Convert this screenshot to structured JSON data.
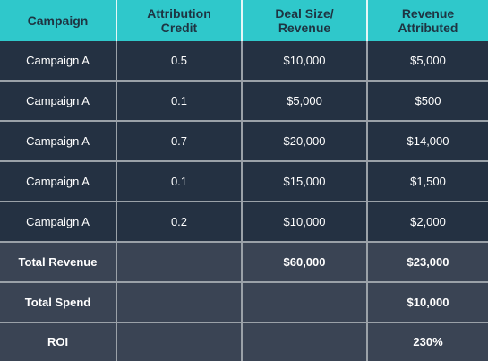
{
  "table": {
    "headers": [
      "Campaign",
      "Attribution Credit",
      "Deal Size/ Revenue",
      "Revenue Attributed"
    ],
    "rows": [
      [
        "Campaign A",
        "0.5",
        "$10,000",
        "$5,000"
      ],
      [
        "Campaign A",
        "0.1",
        "$5,000",
        "$500"
      ],
      [
        "Campaign A",
        "0.7",
        "$20,000",
        "$14,000"
      ],
      [
        "Campaign A",
        "0.1",
        "$15,000",
        "$1,500"
      ],
      [
        "Campaign A",
        "0.2",
        "$10,000",
        "$2,000"
      ]
    ],
    "summary": [
      [
        "Total Revenue",
        "",
        "$60,000",
        "$23,000"
      ],
      [
        "Total Spend",
        "",
        "",
        "$10,000"
      ],
      [
        "ROI",
        "",
        "",
        "230%"
      ]
    ]
  },
  "colors": {
    "header_bg": "#2fc8cb",
    "row_bg": "#243142",
    "summary_bg": "#3a4454",
    "grid_line": "#9aa1a8"
  }
}
